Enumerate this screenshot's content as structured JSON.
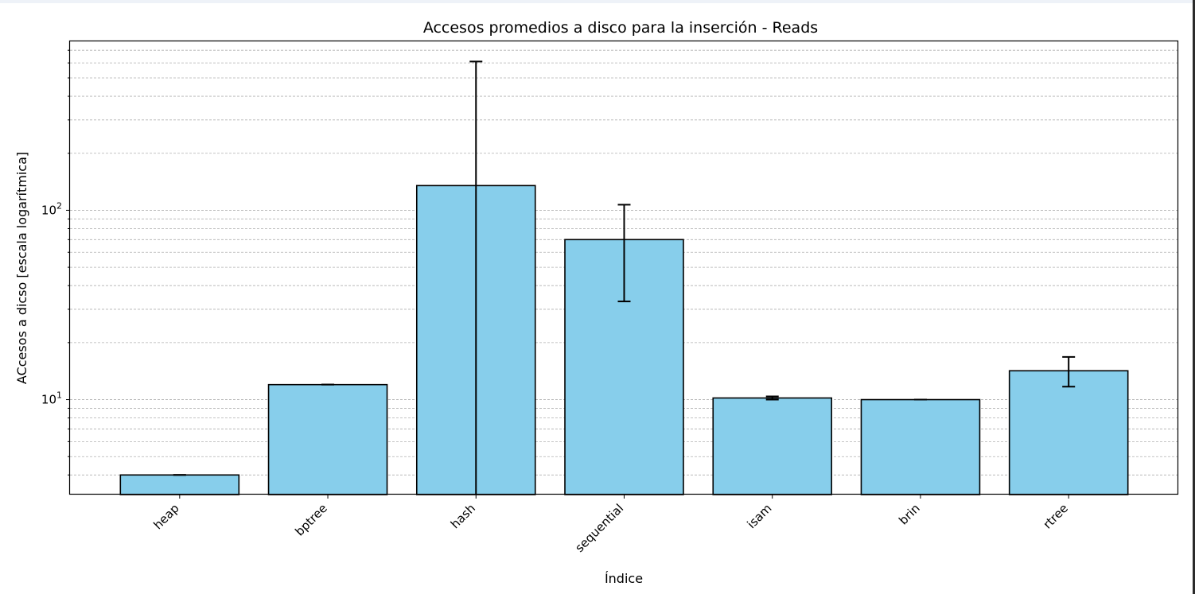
{
  "chart_data": {
    "type": "bar",
    "title": "Accesos promedios a disco para la inserción - Reads",
    "xlabel": "Índice",
    "ylabel": "ACcesos a dicso [escala logarítmica]",
    "yscale": "log",
    "ylim": [
      3.15,
      780
    ],
    "grid": "y-major-and-minor-dashed",
    "bar_color": "#87ceeb",
    "edge_color": "#000000",
    "categories": [
      "heap",
      "bptree",
      "hash",
      "sequential",
      "isam",
      "brin",
      "rtree"
    ],
    "values": [
      4.0,
      12.0,
      135,
      70,
      10.2,
      10.0,
      14.2
    ],
    "error_low": [
      4.0,
      12.0,
      3.15,
      33,
      10.0,
      10.0,
      11.7
    ],
    "error_high": [
      4.0,
      12.0,
      610,
      107,
      10.4,
      10.0,
      16.8
    ],
    "yticks": [
      {
        "value": 10,
        "base": "10",
        "exp": "1"
      },
      {
        "value": 100,
        "base": "10",
        "exp": "2"
      }
    ]
  }
}
